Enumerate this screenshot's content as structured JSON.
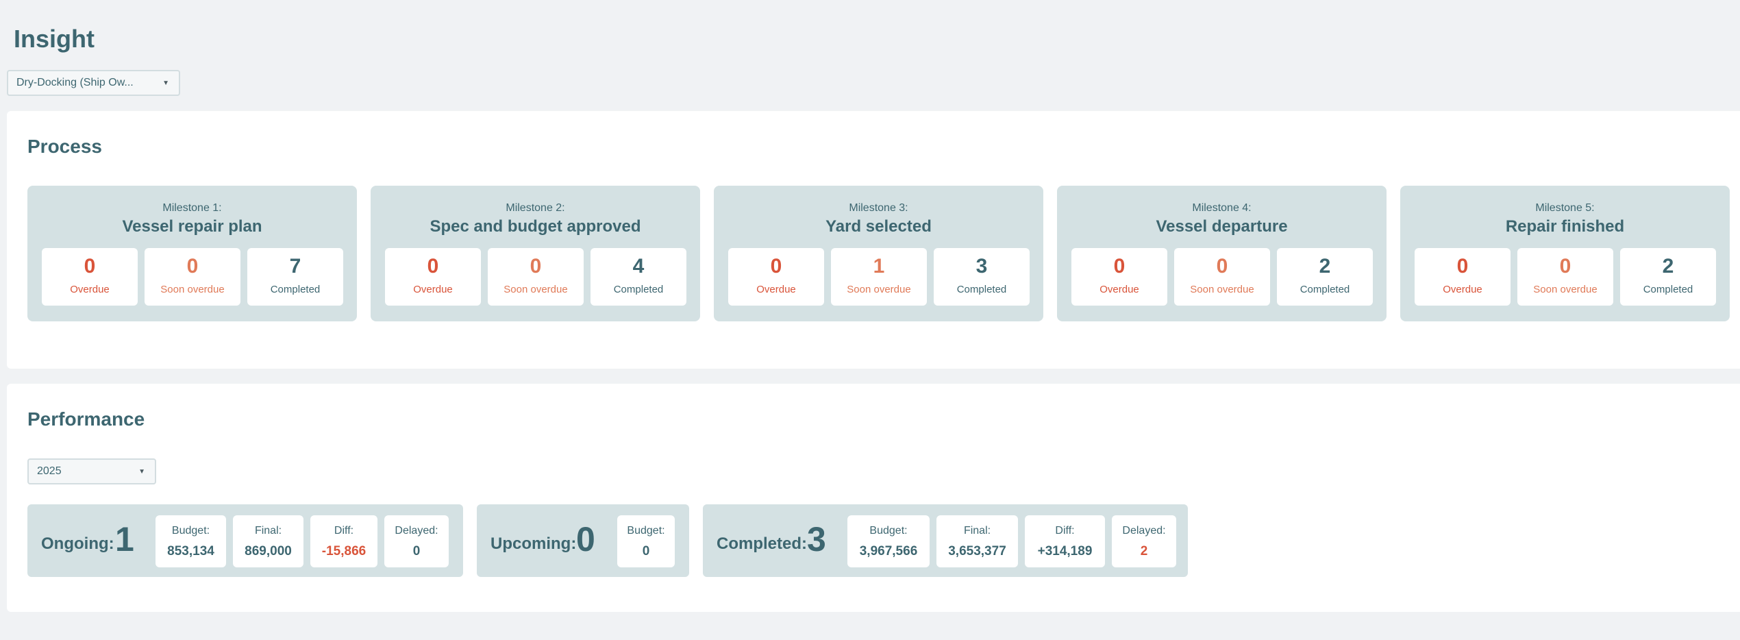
{
  "page": {
    "title": "Insight"
  },
  "type_select": {
    "value": "Dry-Docking (Ship Ow..."
  },
  "process": {
    "title": "Process",
    "milestones": [
      {
        "label": "Milestone 1:",
        "title": "Vessel repair plan",
        "overdue": "0",
        "soon": "0",
        "completed": "7"
      },
      {
        "label": "Milestone 2:",
        "title": "Spec and budget approved",
        "overdue": "0",
        "soon": "0",
        "completed": "4"
      },
      {
        "label": "Milestone 3:",
        "title": "Yard selected",
        "overdue": "0",
        "soon": "1",
        "completed": "3"
      },
      {
        "label": "Milestone 4:",
        "title": "Vessel departure",
        "overdue": "0",
        "soon": "0",
        "completed": "2"
      },
      {
        "label": "Milestone 5:",
        "title": "Repair finished",
        "overdue": "0",
        "soon": "0",
        "completed": "2"
      }
    ],
    "stat_labels": {
      "overdue": "Overdue",
      "soon": "Soon overdue",
      "completed": "Completed"
    }
  },
  "performance": {
    "title": "Performance",
    "year_select": {
      "value": "2025"
    },
    "ongoing": {
      "label": "Ongoing:",
      "count": "1",
      "budget_label": "Budget:",
      "budget": "853,134",
      "final_label": "Final:",
      "final": "869,000",
      "diff_label": "Diff:",
      "diff": "-15,866",
      "delayed_label": "Delayed:",
      "delayed": "0"
    },
    "upcoming": {
      "label": "Upcoming:",
      "count": "0",
      "budget_label": "Budget:",
      "budget": "0"
    },
    "completed": {
      "label": "Completed:",
      "count": "3",
      "budget_label": "Budget:",
      "budget": "3,967,566",
      "final_label": "Final:",
      "final": "3,653,377",
      "diff_label": "Diff:",
      "diff": "+314,189",
      "delayed_label": "Delayed:",
      "delayed": "2"
    }
  },
  "colors": {
    "accent": "#3d6670",
    "overdue": "#d9543a",
    "soon_overdue": "#e07a58",
    "panel": "#d4e1e3",
    "background": "#f0f2f4"
  },
  "icons": {
    "dropdown": "chevron-down-icon"
  }
}
